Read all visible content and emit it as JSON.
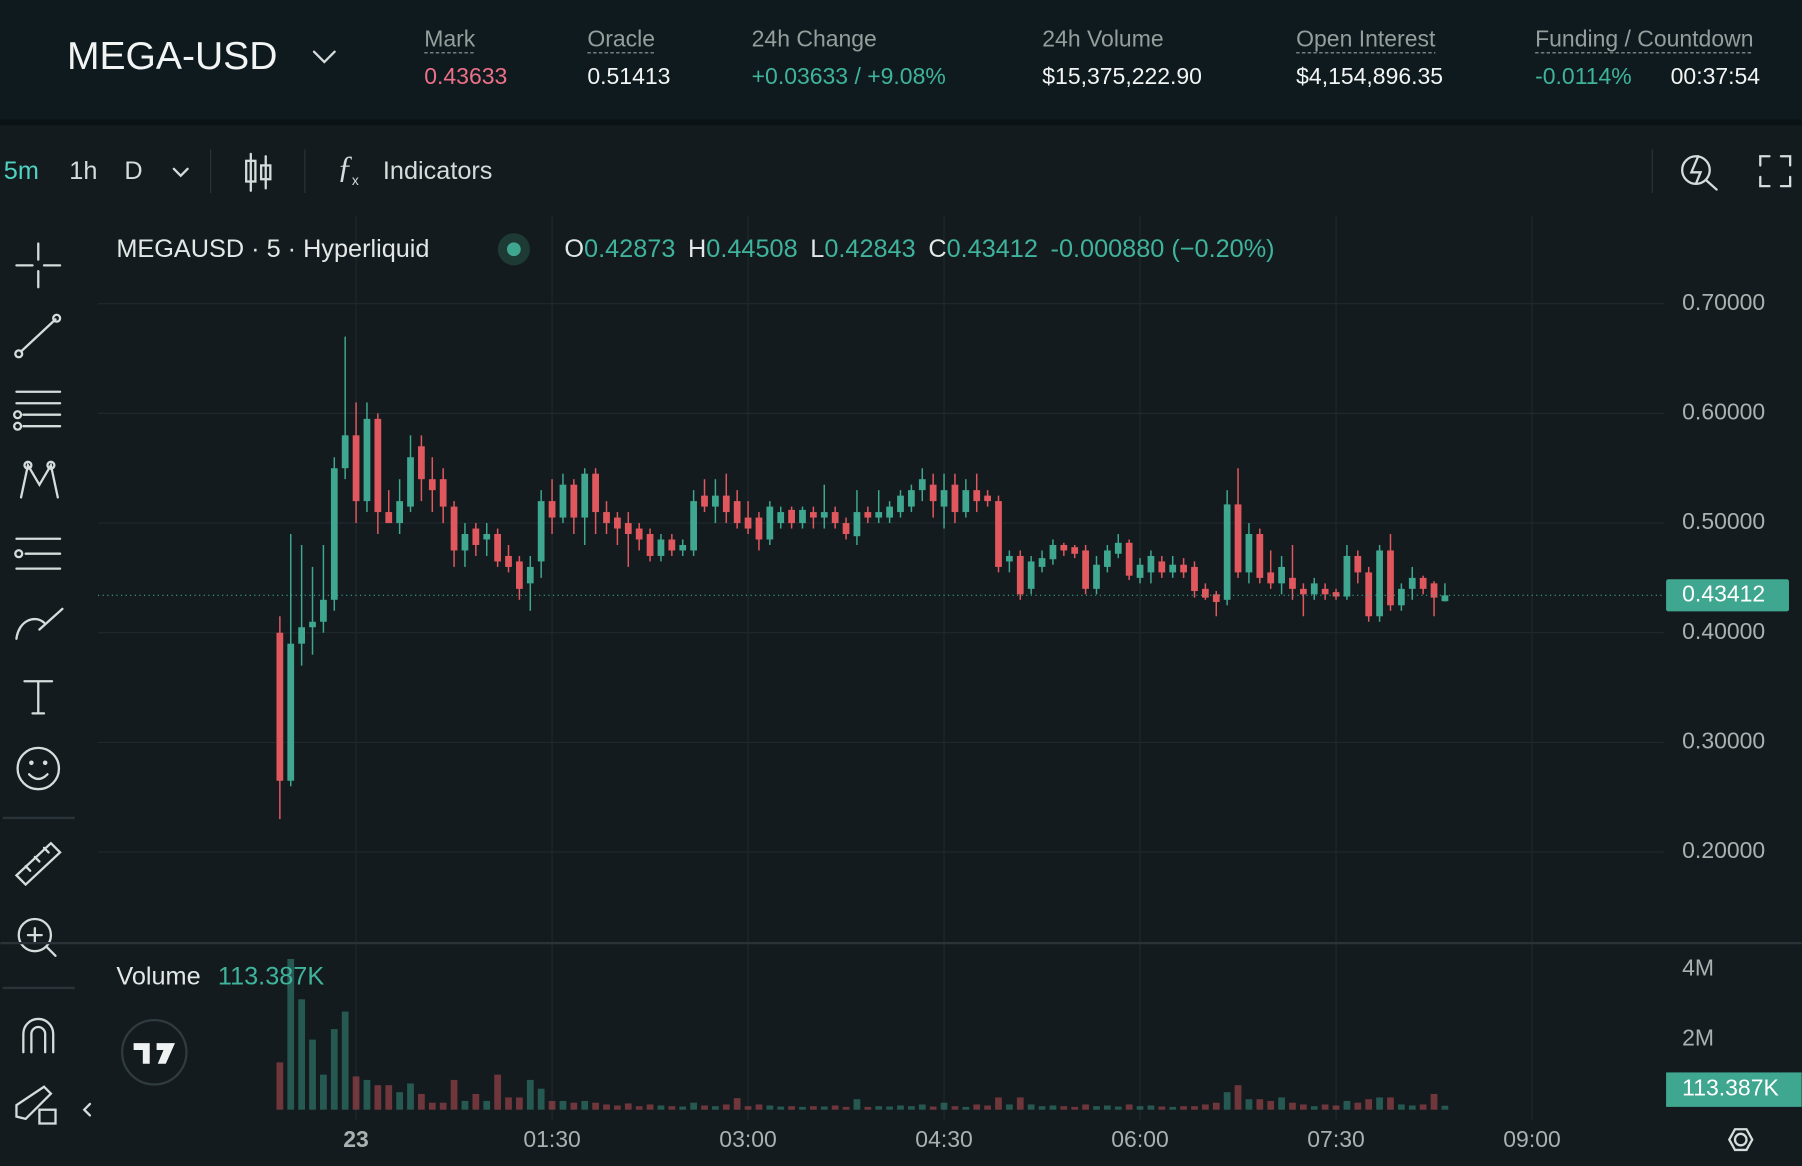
{
  "header": {
    "market": "MEGA-USD",
    "stats": [
      {
        "label": "Mark",
        "value": "0.43633"
      },
      {
        "label": "Oracle",
        "value": "0.51413"
      },
      {
        "label": "24h Change",
        "value": "+0.03633 / +9.08%"
      },
      {
        "label": "24h Volume",
        "value": "$15,375,222.90"
      },
      {
        "label": "Open Interest",
        "value": "$4,154,896.35"
      },
      {
        "label": "Funding / Countdown",
        "value": "-0.0114%",
        "value2": "00:37:54"
      }
    ]
  },
  "toolbar": {
    "intervals": [
      "5m",
      "1h",
      "D"
    ],
    "indicators": "Indicators"
  },
  "chart_data": {
    "type": "candlestick",
    "legend": {
      "symbol": "MEGAUSD · 5 · Hyperliquid",
      "o": "O",
      "h": "H",
      "l": "L",
      "c": "C",
      "change": "-0.000880 (−0.20%)",
      "volume": "Volume"
    },
    "up_color": "#3fa68f",
    "down_color": "#e0585d",
    "xlim": [
      -16.7,
      127.1
    ],
    "xticks": [
      {
        "value": 7,
        "label": "23"
      },
      {
        "value": 25,
        "label": "01:30"
      },
      {
        "value": 43,
        "label": "03:00"
      },
      {
        "value": 61,
        "label": "04:30"
      },
      {
        "value": 79,
        "label": "06:00"
      },
      {
        "value": 97,
        "label": "07:30"
      },
      {
        "value": 115,
        "label": "09:00"
      }
    ],
    "ylim": [
      0.118,
      0.78
    ],
    "yticks": [
      {
        "value": 0.2,
        "label": "0.20000"
      },
      {
        "value": 0.3,
        "label": "0.30000"
      },
      {
        "value": 0.4,
        "label": "0.40000"
      },
      {
        "value": 0.5,
        "label": "0.50000"
      },
      {
        "value": 0.6,
        "label": "0.60000"
      },
      {
        "value": 0.7,
        "label": "0.70000"
      }
    ],
    "y2lim": [
      0,
      4720000
    ],
    "y2ticks": [
      {
        "value": 2000000,
        "label": "2M"
      },
      {
        "value": 4000000,
        "label": "4M"
      }
    ],
    "grid": true,
    "open": [
      0.4,
      0.265,
      0.39,
      0.405,
      0.41,
      0.43,
      0.55,
      0.58,
      0.52,
      0.595,
      0.51,
      0.5,
      0.515,
      0.57,
      0.54,
      0.54,
      0.515,
      0.475,
      0.495,
      0.485,
      0.49,
      0.47,
      0.465,
      0.445,
      0.465,
      0.52,
      0.505,
      0.535,
      0.505,
      0.545,
      0.51,
      0.505,
      0.5,
      0.495,
      0.49,
      0.47,
      0.485,
      0.475,
      0.475,
      0.525,
      0.515,
      0.525,
      0.52,
      0.505,
      0.505,
      0.485,
      0.5,
      0.512,
      0.5,
      0.51,
      0.505,
      0.51,
      0.5,
      0.488,
      0.51,
      0.505,
      0.505,
      0.51,
      0.515,
      0.53,
      0.535,
      0.515,
      0.535,
      0.51,
      0.53,
      0.525,
      0.52,
      0.465,
      0.47,
      0.44,
      0.46,
      0.467,
      0.48,
      0.478,
      0.475,
      0.44,
      0.46,
      0.472,
      0.482,
      0.45,
      0.455,
      0.465,
      0.455,
      0.462,
      0.46,
      0.44,
      0.435,
      0.43,
      0.517,
      0.455,
      0.49,
      0.455,
      0.445,
      0.45,
      0.44,
      0.435,
      0.44,
      0.437,
      0.433,
      0.47,
      0.455,
      0.415,
      0.475,
      0.425,
      0.44,
      0.45,
      0.445,
      0.42873
    ],
    "high": [
      0.415,
      0.49,
      0.48,
      0.46,
      0.48,
      0.56,
      0.67,
      0.61,
      0.61,
      0.6,
      0.53,
      0.54,
      0.58,
      0.58,
      0.56,
      0.55,
      0.52,
      0.5,
      0.5,
      0.5,
      0.495,
      0.48,
      0.47,
      0.47,
      0.53,
      0.54,
      0.545,
      0.54,
      0.55,
      0.55,
      0.52,
      0.51,
      0.51,
      0.5,
      0.495,
      0.49,
      0.49,
      0.485,
      0.53,
      0.54,
      0.54,
      0.545,
      0.53,
      0.52,
      0.51,
      0.52,
      0.515,
      0.515,
      0.515,
      0.515,
      0.535,
      0.515,
      0.505,
      0.53,
      0.515,
      0.53,
      0.52,
      0.53,
      0.535,
      0.55,
      0.545,
      0.545,
      0.545,
      0.54,
      0.545,
      0.53,
      0.525,
      0.475,
      0.475,
      0.47,
      0.475,
      0.485,
      0.482,
      0.48,
      0.48,
      0.47,
      0.48,
      0.49,
      0.485,
      0.468,
      0.475,
      0.47,
      0.47,
      0.468,
      0.465,
      0.445,
      0.438,
      0.53,
      0.55,
      0.5,
      0.495,
      0.475,
      0.47,
      0.48,
      0.445,
      0.45,
      0.445,
      0.44,
      0.48,
      0.475,
      0.46,
      0.48,
      0.49,
      0.445,
      0.46,
      0.452,
      0.447,
      0.44508
    ],
    "low": [
      0.23,
      0.26,
      0.37,
      0.38,
      0.4,
      0.42,
      0.54,
      0.5,
      0.51,
      0.49,
      0.5,
      0.49,
      0.51,
      0.52,
      0.51,
      0.5,
      0.46,
      0.46,
      0.47,
      0.47,
      0.46,
      0.455,
      0.43,
      0.42,
      0.45,
      0.49,
      0.5,
      0.49,
      0.48,
      0.49,
      0.49,
      0.48,
      0.46,
      0.475,
      0.465,
      0.465,
      0.47,
      0.47,
      0.47,
      0.51,
      0.5,
      0.5,
      0.495,
      0.49,
      0.475,
      0.48,
      0.495,
      0.495,
      0.495,
      0.495,
      0.495,
      0.495,
      0.485,
      0.48,
      0.5,
      0.5,
      0.5,
      0.505,
      0.51,
      0.52,
      0.505,
      0.495,
      0.5,
      0.505,
      0.51,
      0.515,
      0.455,
      0.455,
      0.43,
      0.435,
      0.455,
      0.462,
      0.47,
      0.468,
      0.435,
      0.435,
      0.455,
      0.468,
      0.448,
      0.445,
      0.445,
      0.45,
      0.45,
      0.45,
      0.432,
      0.43,
      0.415,
      0.425,
      0.45,
      0.445,
      0.445,
      0.44,
      0.435,
      0.43,
      0.415,
      0.43,
      0.43,
      0.43,
      0.43,
      0.445,
      0.41,
      0.41,
      0.42,
      0.42,
      0.43,
      0.435,
      0.415,
      0.42843
    ],
    "close": [
      0.265,
      0.39,
      0.405,
      0.41,
      0.43,
      0.55,
      0.58,
      0.52,
      0.595,
      0.51,
      0.5,
      0.52,
      0.56,
      0.54,
      0.53,
      0.515,
      0.475,
      0.49,
      0.48,
      0.49,
      0.465,
      0.46,
      0.44,
      0.46,
      0.52,
      0.505,
      0.535,
      0.505,
      0.545,
      0.51,
      0.5,
      0.495,
      0.49,
      0.485,
      0.47,
      0.485,
      0.475,
      0.48,
      0.52,
      0.515,
      0.525,
      0.51,
      0.5,
      0.495,
      0.485,
      0.515,
      0.51,
      0.5,
      0.512,
      0.505,
      0.51,
      0.5,
      0.49,
      0.51,
      0.505,
      0.51,
      0.515,
      0.525,
      0.53,
      0.54,
      0.52,
      0.53,
      0.51,
      0.53,
      0.52,
      0.52,
      0.46,
      0.47,
      0.435,
      0.465,
      0.468,
      0.48,
      0.475,
      0.472,
      0.44,
      0.462,
      0.475,
      0.482,
      0.452,
      0.462,
      0.47,
      0.455,
      0.462,
      0.455,
      0.438,
      0.432,
      0.428,
      0.517,
      0.455,
      0.49,
      0.45,
      0.445,
      0.46,
      0.44,
      0.435,
      0.445,
      0.435,
      0.433,
      0.47,
      0.455,
      0.415,
      0.475,
      0.425,
      0.44,
      0.45,
      0.44,
      0.432,
      0.43412
    ],
    "volume": {
      "axis": "y2",
      "values": [
        1350000,
        4300000,
        3150000,
        2000000,
        1000000,
        2300000,
        2800000,
        950000,
        850000,
        700000,
        700000,
        500000,
        750000,
        450000,
        200000,
        200000,
        850000,
        250000,
        450000,
        250000,
        1000000,
        350000,
        350000,
        850000,
        600000,
        250000,
        250000,
        200000,
        250000,
        200000,
        150000,
        120000,
        180000,
        100000,
        150000,
        120000,
        100000,
        90000,
        200000,
        120000,
        100000,
        150000,
        330000,
        100000,
        150000,
        120000,
        90000,
        100000,
        80000,
        100000,
        90000,
        120000,
        80000,
        300000,
        80000,
        100000,
        90000,
        120000,
        100000,
        150000,
        90000,
        200000,
        100000,
        80000,
        150000,
        120000,
        350000,
        150000,
        350000,
        150000,
        100000,
        120000,
        100000,
        80000,
        150000,
        100000,
        120000,
        90000,
        150000,
        100000,
        120000,
        90000,
        80000,
        100000,
        100000,
        150000,
        200000,
        500000,
        700000,
        300000,
        300000,
        250000,
        350000,
        200000,
        150000,
        100000,
        150000,
        120000,
        250000,
        200000,
        300000,
        350000,
        350000,
        150000,
        120000,
        150000,
        450000,
        113387
      ],
      "value_labels": {
        "107": "113.387K"
      }
    }
  }
}
